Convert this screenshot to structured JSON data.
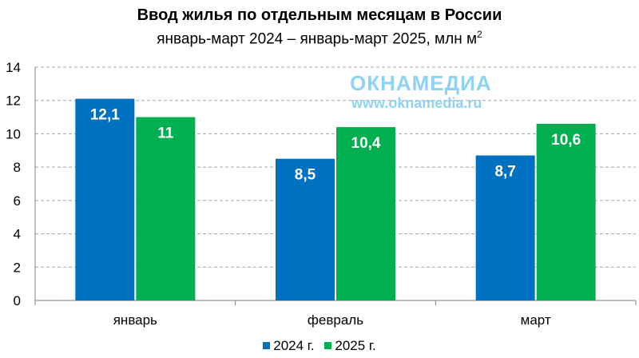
{
  "chart_data": {
    "type": "bar",
    "title": "Ввод жилья по отдельным месяцам в России",
    "subtitle": "январь-март 2024 – январь-март 2025, млн м",
    "subtitle_sup": "2",
    "categories": [
      "январь",
      "февраль",
      "март"
    ],
    "series": [
      {
        "name": "2024 г.",
        "color": "#0070c0",
        "values": [
          12.1,
          8.5,
          8.7
        ],
        "labels": [
          "12,1",
          "8,5",
          "8,7"
        ]
      },
      {
        "name": "2025 г.",
        "color": "#00b050",
        "values": [
          11,
          10.4,
          10.6
        ],
        "labels": [
          "11",
          "10,4",
          "10,6"
        ]
      }
    ],
    "ylim": [
      0,
      14
    ],
    "yticks": [
      "0",
      "2",
      "4",
      "6",
      "8",
      "10",
      "12",
      "14"
    ],
    "grid": true,
    "legend_position": "bottom"
  },
  "watermark": {
    "logo": "ОКНАМЕДИА",
    "url": "www.oknamedia.ru"
  }
}
